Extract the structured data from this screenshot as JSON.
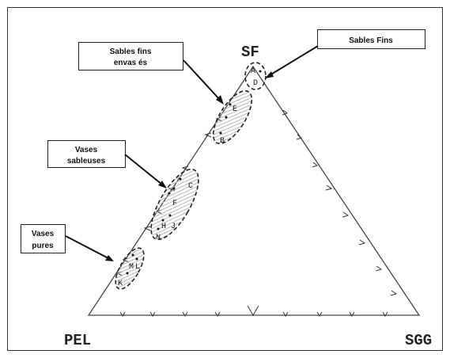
{
  "vertices": {
    "top": "SF",
    "left": "PEL",
    "right": "SGG"
  },
  "callouts": {
    "sables_fins": "Sables Fins",
    "sables_fins_envases_line1": "Sables fins",
    "sables_fins_envases_line2": "envas és",
    "vases_sableuses_line1": "Vases",
    "vases_sableuses_line2": "sableuses",
    "vases_pures_line1": "Vases",
    "vases_pures_line2": "pures"
  },
  "point_labels": {
    "A": "A",
    "D": "D",
    "E": "E",
    "B": "B",
    "C": "C",
    "F": "F",
    "H": "H",
    "J": "J",
    "N": "N",
    "M": "M",
    "L": "L",
    "K": "K"
  },
  "colors": {
    "line": "#333333",
    "ellipse_fill": "#d0d0d0",
    "background": "#ffffff"
  }
}
